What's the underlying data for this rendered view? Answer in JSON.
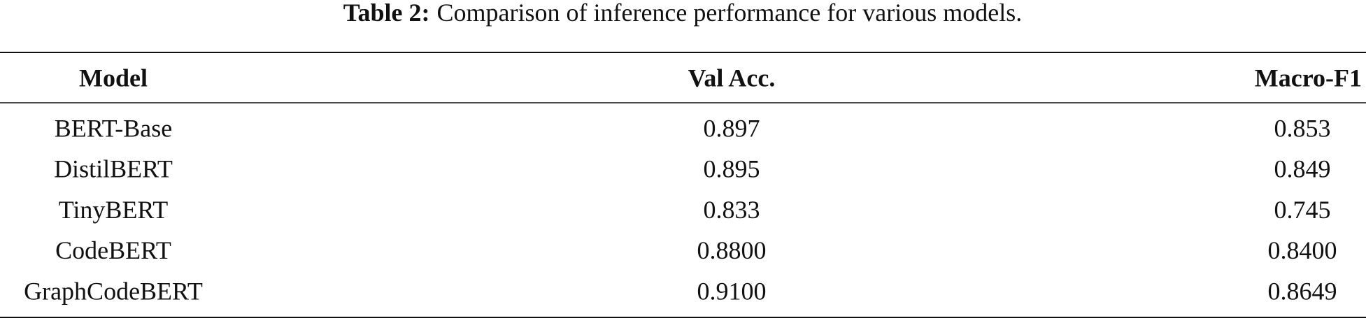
{
  "caption": {
    "label": "Table 2:",
    "text": "Comparison of inference performance for various models."
  },
  "table": {
    "header": [
      "Model",
      "Val Acc.",
      "Macro-F1"
    ],
    "rows": [
      [
        "BERT-Base",
        "0.897",
        "0.853"
      ],
      [
        "DistilBERT",
        "0.895",
        "0.849"
      ],
      [
        "TinyBERT",
        "0.833",
        "0.745"
      ],
      [
        "CodeBERT",
        "0.8800",
        "0.8400"
      ],
      [
        "GraphCodeBERT",
        "0.9100",
        "0.8649"
      ]
    ]
  }
}
